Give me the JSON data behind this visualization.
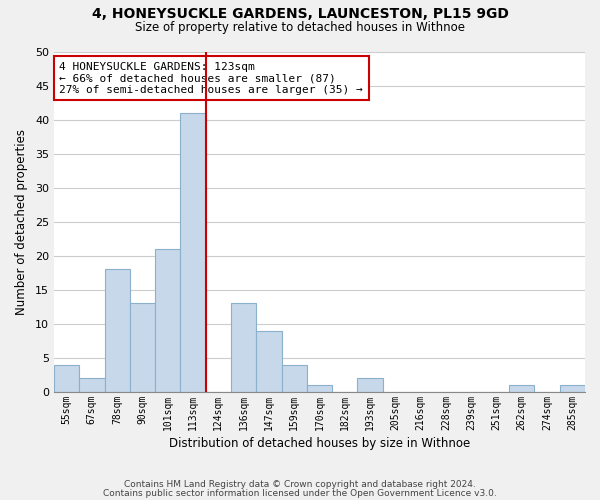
{
  "title": "4, HONEYSUCKLE GARDENS, LAUNCESTON, PL15 9GD",
  "subtitle": "Size of property relative to detached houses in Withnoe",
  "xlabel": "Distribution of detached houses by size in Withnoe",
  "ylabel": "Number of detached properties",
  "bar_labels": [
    "55sqm",
    "67sqm",
    "78sqm",
    "90sqm",
    "101sqm",
    "113sqm",
    "124sqm",
    "136sqm",
    "147sqm",
    "159sqm",
    "170sqm",
    "182sqm",
    "193sqm",
    "205sqm",
    "216sqm",
    "228sqm",
    "239sqm",
    "251sqm",
    "262sqm",
    "274sqm",
    "285sqm"
  ],
  "bar_values": [
    4,
    2,
    18,
    13,
    21,
    41,
    0,
    13,
    9,
    4,
    1,
    0,
    2,
    0,
    0,
    0,
    0,
    0,
    1,
    0,
    1
  ],
  "bar_color": "#c8d8eb",
  "bar_edge_color": "#8ab0cc",
  "ref_line_after_label": "113sqm",
  "ref_line_color": "#cc0000",
  "annotation_line1": "4 HONEYSUCKLE GARDENS: 123sqm",
  "annotation_line2": "← 66% of detached houses are smaller (87)",
  "annotation_line3": "27% of semi-detached houses are larger (35) →",
  "annotation_box_edge_color": "#cc0000",
  "ylim": [
    0,
    50
  ],
  "yticks": [
    0,
    5,
    10,
    15,
    20,
    25,
    30,
    35,
    40,
    45,
    50
  ],
  "footnote1": "Contains HM Land Registry data © Crown copyright and database right 2024.",
  "footnote2": "Contains public sector information licensed under the Open Government Licence v3.0.",
  "bg_color": "#f0f0f0",
  "plot_bg_color": "#ffffff",
  "grid_color": "#cccccc"
}
